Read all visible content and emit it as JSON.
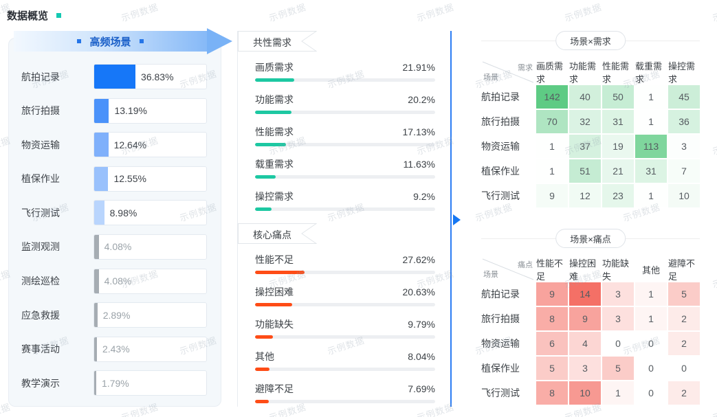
{
  "page_title": "数据概览",
  "watermark_text": "示例数据",
  "colors": {
    "accent_blue": "#1677f8",
    "teal": "#1dc8a2",
    "red": "#fe4c16",
    "heat_green_base": [
      94,
      203,
      132
    ],
    "heat_red_base": [
      244,
      112,
      102
    ],
    "muted_gray_bar": "#a6adb3"
  },
  "left_panel": {
    "header": "高频场景",
    "items": [
      {
        "label": "航拍记录",
        "value": "36.83%",
        "pct": 36.83,
        "color": "#1677f8",
        "muted": false
      },
      {
        "label": "旅行拍摄",
        "value": "13.19%",
        "pct": 13.19,
        "color": "#4a92fa",
        "muted": false
      },
      {
        "label": "物资运输",
        "value": "12.64%",
        "pct": 12.64,
        "color": "#7fb0fb",
        "muted": false
      },
      {
        "label": "植保作业",
        "value": "12.55%",
        "pct": 12.55,
        "color": "#99c1fc",
        "muted": false
      },
      {
        "label": "飞行测试",
        "value": "8.98%",
        "pct": 8.98,
        "color": "#b9d5fd",
        "muted": false
      },
      {
        "label": "监测观测",
        "value": "4.08%",
        "pct": 4.08,
        "color": "#a6adb3",
        "muted": true
      },
      {
        "label": "测绘巡检",
        "value": "4.08%",
        "pct": 4.08,
        "color": "#a6adb3",
        "muted": true
      },
      {
        "label": "应急救援",
        "value": "2.89%",
        "pct": 2.89,
        "color": "#a6adb3",
        "muted": true
      },
      {
        "label": "赛事活动",
        "value": "2.43%",
        "pct": 2.43,
        "color": "#a6adb3",
        "muted": true
      },
      {
        "label": "教学演示",
        "value": "1.79%",
        "pct": 1.79,
        "color": "#a6adb3",
        "muted": true
      }
    ]
  },
  "middle_panel": {
    "sections": [
      {
        "title": "共性需求",
        "bar_color": "#1dc8a2",
        "items": [
          {
            "label": "画质需求",
            "value": "21.91%",
            "pct": 21.91
          },
          {
            "label": "功能需求",
            "value": "20.2%",
            "pct": 20.2
          },
          {
            "label": "性能需求",
            "value": "17.13%",
            "pct": 17.13
          },
          {
            "label": "载重需求",
            "value": "11.63%",
            "pct": 11.63
          },
          {
            "label": "操控需求",
            "value": "9.2%",
            "pct": 9.2
          }
        ]
      },
      {
        "title": "核心痛点",
        "bar_color": "#fe4c16",
        "items": [
          {
            "label": "性能不足",
            "value": "27.62%",
            "pct": 27.62
          },
          {
            "label": "操控困难",
            "value": "20.63%",
            "pct": 20.63
          },
          {
            "label": "功能缺失",
            "value": "9.79%",
            "pct": 9.79
          },
          {
            "label": "其他",
            "value": "8.04%",
            "pct": 8.04
          },
          {
            "label": "避障不足",
            "value": "7.69%",
            "pct": 7.69
          }
        ]
      }
    ]
  },
  "right_panel": {
    "tables": [
      {
        "title": "场景×需求",
        "corner_top": "需求",
        "corner_bottom": "场景",
        "columns": [
          "画质需求",
          "功能需求",
          "性能需求",
          "载重需求",
          "操控需求"
        ],
        "rows": [
          {
            "label": "航拍记录",
            "values": [
              142,
              40,
              50,
              1,
              45
            ]
          },
          {
            "label": "旅行拍摄",
            "values": [
              70,
              32,
              31,
              1,
              36
            ]
          },
          {
            "label": "物资运输",
            "values": [
              1,
              37,
              19,
              113,
              3
            ]
          },
          {
            "label": "植保作业",
            "values": [
              1,
              51,
              21,
              31,
              7
            ]
          },
          {
            "label": "飞行测试",
            "values": [
              9,
              12,
              23,
              1,
              10
            ]
          }
        ],
        "base_color": [
          94,
          203,
          132
        ],
        "max": 142
      },
      {
        "title": "场景×痛点",
        "corner_top": "痛点",
        "corner_bottom": "场景",
        "columns": [
          "性能不足",
          "操控困难",
          "功能缺失",
          "其他",
          "避障不足"
        ],
        "rows": [
          {
            "label": "航拍记录",
            "values": [
              9,
              14,
              3,
              1,
              5
            ]
          },
          {
            "label": "旅行拍摄",
            "values": [
              8,
              9,
              3,
              1,
              2
            ]
          },
          {
            "label": "物资运输",
            "values": [
              6,
              4,
              0,
              0,
              2
            ]
          },
          {
            "label": "植保作业",
            "values": [
              5,
              3,
              5,
              0,
              0
            ]
          },
          {
            "label": "飞行测试",
            "values": [
              8,
              10,
              1,
              0,
              2
            ]
          }
        ],
        "base_color": [
          244,
          112,
          102
        ],
        "max": 14
      }
    ]
  },
  "chart_data": [
    {
      "type": "bar",
      "title": "高频场景",
      "orientation": "horizontal",
      "categories": [
        "航拍记录",
        "旅行拍摄",
        "物资运输",
        "植保作业",
        "飞行测试",
        "监测观测",
        "测绘巡检",
        "应急救援",
        "赛事活动",
        "教学演示"
      ],
      "values": [
        36.83,
        13.19,
        12.64,
        12.55,
        8.98,
        4.08,
        4.08,
        2.89,
        2.43,
        1.79
      ],
      "unit": "%",
      "xlabel": "",
      "ylabel": "",
      "xlim": [
        0,
        100
      ],
      "grid": false,
      "legend": "none"
    },
    {
      "type": "bar",
      "title": "共性需求",
      "orientation": "horizontal",
      "categories": [
        "画质需求",
        "功能需求",
        "性能需求",
        "载重需求",
        "操控需求"
      ],
      "values": [
        21.91,
        20.2,
        17.13,
        11.63,
        9.2
      ],
      "unit": "%",
      "xlabel": "",
      "ylabel": "",
      "xlim": [
        0,
        100
      ],
      "grid": false,
      "legend": "none"
    },
    {
      "type": "bar",
      "title": "核心痛点",
      "orientation": "horizontal",
      "categories": [
        "性能不足",
        "操控困难",
        "功能缺失",
        "其他",
        "避障不足"
      ],
      "values": [
        27.62,
        20.63,
        9.79,
        8.04,
        7.69
      ],
      "unit": "%",
      "xlabel": "",
      "ylabel": "",
      "xlim": [
        0,
        100
      ],
      "grid": false,
      "legend": "none"
    },
    {
      "type": "heatmap",
      "title": "场景×需求",
      "x": [
        "画质需求",
        "功能需求",
        "性能需求",
        "载重需求",
        "操控需求"
      ],
      "y": [
        "航拍记录",
        "旅行拍摄",
        "物资运输",
        "植保作业",
        "飞行测试"
      ],
      "values": [
        [
          142,
          40,
          50,
          1,
          45
        ],
        [
          70,
          32,
          31,
          1,
          36
        ],
        [
          1,
          37,
          19,
          113,
          3
        ],
        [
          1,
          51,
          21,
          31,
          7
        ],
        [
          9,
          12,
          23,
          1,
          10
        ]
      ],
      "colormap": "white-to-green",
      "vmin": 0,
      "vmax": 142
    },
    {
      "type": "heatmap",
      "title": "场景×痛点",
      "x": [
        "性能不足",
        "操控困难",
        "功能缺失",
        "其他",
        "避障不足"
      ],
      "y": [
        "航拍记录",
        "旅行拍摄",
        "物资运输",
        "植保作业",
        "飞行测试"
      ],
      "values": [
        [
          9,
          14,
          3,
          1,
          5
        ],
        [
          8,
          9,
          3,
          1,
          2
        ],
        [
          6,
          4,
          0,
          0,
          2
        ],
        [
          5,
          3,
          5,
          0,
          0
        ],
        [
          8,
          10,
          1,
          0,
          2
        ]
      ],
      "colormap": "white-to-red",
      "vmin": 0,
      "vmax": 14
    }
  ]
}
